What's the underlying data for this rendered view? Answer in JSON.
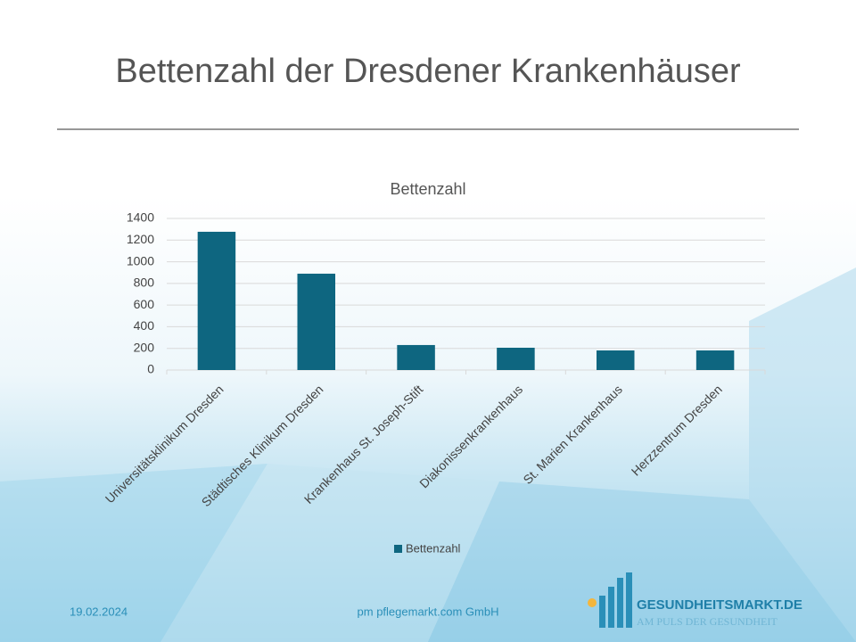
{
  "slide_title": "Bettenzahl der Dresdener Krankenhäuser",
  "chart_data": {
    "type": "bar",
    "title": "Bettenzahl",
    "categories": [
      "Universitätsklinikum Dresden",
      "Städtisches Klinikum Dresden",
      "Krankenhaus St. Joseph-Stift",
      "Diakonissenkrankenhaus",
      "St. Marien Krankenhaus",
      "Herzzentrum Dresden"
    ],
    "series": [
      {
        "name": "Bettenzahl",
        "color": "#0e6680",
        "values": [
          1277,
          890,
          231,
          206,
          181,
          181
        ]
      }
    ],
    "ylim": [
      0,
      1400
    ],
    "yticks": [
      0,
      200,
      400,
      600,
      800,
      1000,
      1200,
      1400
    ],
    "grid": true,
    "legend": "bottom"
  },
  "footer": {
    "date": "19.02.2024",
    "company": "pm pflegemarkt.com GmbH"
  },
  "logo": {
    "name": "GESUNDHEITSMARKT.DE",
    "tagline": "AM PULS DER GESUNDHEIT"
  }
}
